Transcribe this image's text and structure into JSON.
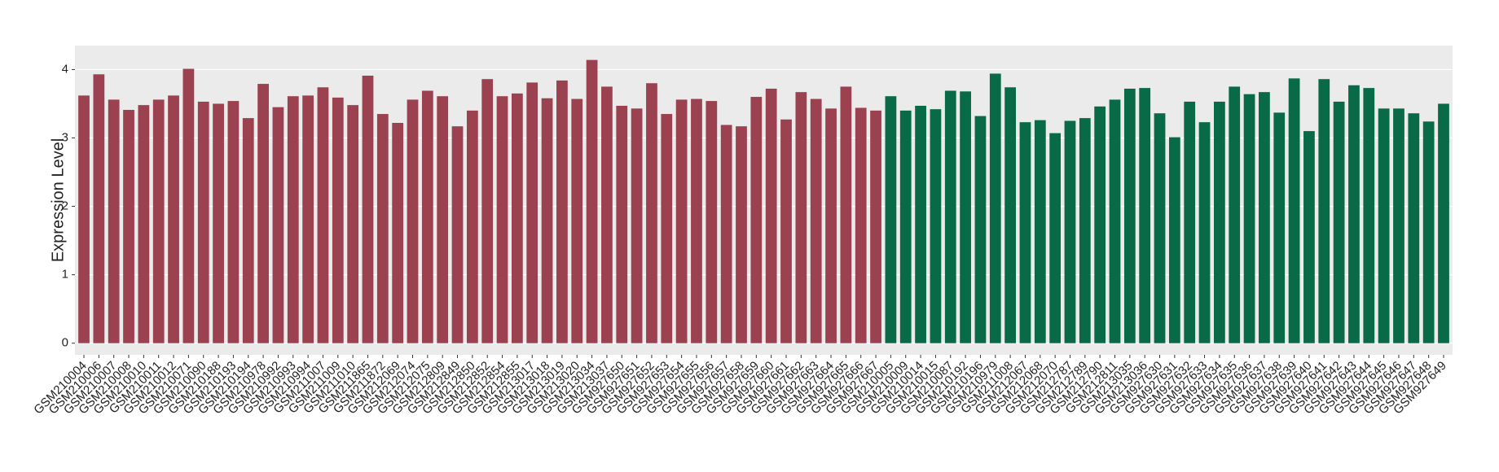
{
  "chart_data": {
    "type": "bar",
    "y_label": "Expression Level",
    "categories": [
      "GSM210004",
      "GSM210006",
      "GSM210007",
      "GSM210008",
      "GSM210010",
      "GSM210011",
      "GSM210012",
      "GSM210071",
      "GSM210090",
      "GSM210188",
      "GSM210193",
      "GSM210194",
      "GSM210978",
      "GSM210992",
      "GSM210993",
      "GSM210994",
      "GSM211007",
      "GSM211009",
      "GSM211010",
      "GSM211865",
      "GSM211872",
      "GSM212069",
      "GSM212074",
      "GSM212075",
      "GSM212809",
      "GSM212849",
      "GSM212850",
      "GSM212852",
      "GSM212854",
      "GSM212855",
      "GSM213017",
      "GSM213018",
      "GSM213019",
      "GSM213020",
      "GSM213034",
      "GSM213037",
      "GSM927650",
      "GSM927651",
      "GSM927652",
      "GSM927653",
      "GSM927654",
      "GSM927655",
      "GSM927656",
      "GSM927657",
      "GSM927658",
      "GSM927659",
      "GSM927660",
      "GSM927661",
      "GSM927662",
      "GSM927663",
      "GSM927664",
      "GSM927665",
      "GSM927666",
      "GSM927667",
      "GSM210005",
      "GSM210009",
      "GSM210014",
      "GSM210015",
      "GSM210087",
      "GSM210192",
      "GSM210196",
      "GSM210979",
      "GSM211008",
      "GSM212067",
      "GSM212068",
      "GSM212070",
      "GSM212787",
      "GSM212789",
      "GSM212790",
      "GSM212811",
      "GSM213035",
      "GSM213036",
      "GSM927630",
      "GSM927631",
      "GSM927632",
      "GSM927633",
      "GSM927634",
      "GSM927635",
      "GSM927636",
      "GSM927637",
      "GSM927638",
      "GSM927639",
      "GSM927640",
      "GSM927641",
      "GSM927642",
      "GSM927643",
      "GSM927644",
      "GSM927645",
      "GSM927646",
      "GSM927647",
      "GSM927648",
      "GSM927649"
    ],
    "values": [
      3.62,
      3.93,
      3.56,
      3.41,
      3.48,
      3.56,
      3.62,
      4.01,
      3.53,
      3.5,
      3.54,
      3.29,
      3.79,
      3.45,
      3.61,
      3.62,
      3.74,
      3.59,
      3.48,
      3.91,
      3.35,
      3.22,
      3.56,
      3.69,
      3.61,
      3.17,
      3.4,
      3.86,
      3.61,
      3.65,
      3.81,
      3.58,
      3.84,
      3.57,
      4.14,
      3.75,
      3.47,
      3.43,
      3.8,
      3.35,
      3.56,
      3.57,
      3.54,
      3.19,
      3.17,
      3.6,
      3.72,
      3.27,
      3.67,
      3.57,
      3.43,
      3.75,
      3.44,
      3.4,
      3.61,
      3.4,
      3.47,
      3.42,
      3.69,
      3.68,
      3.32,
      3.94,
      3.74,
      3.23,
      3.26,
      3.07,
      3.25,
      3.29,
      3.46,
      3.56,
      3.72,
      3.73,
      3.36,
      3.01,
      3.53,
      3.23,
      3.53,
      3.75,
      3.64,
      3.67,
      3.37,
      3.87,
      3.1,
      3.86,
      3.53,
      3.77,
      3.73,
      3.43,
      3.43,
      3.36,
      3.24,
      3.5
    ],
    "colors": [
      "#9b4150",
      "#9b4150",
      "#9b4150",
      "#9b4150",
      "#9b4150",
      "#9b4150",
      "#9b4150",
      "#9b4150",
      "#9b4150",
      "#9b4150",
      "#9b4150",
      "#9b4150",
      "#9b4150",
      "#9b4150",
      "#9b4150",
      "#9b4150",
      "#9b4150",
      "#9b4150",
      "#9b4150",
      "#9b4150",
      "#9b4150",
      "#9b4150",
      "#9b4150",
      "#9b4150",
      "#9b4150",
      "#9b4150",
      "#9b4150",
      "#9b4150",
      "#9b4150",
      "#9b4150",
      "#9b4150",
      "#9b4150",
      "#9b4150",
      "#9b4150",
      "#9b4150",
      "#9b4150",
      "#9b4150",
      "#9b4150",
      "#9b4150",
      "#9b4150",
      "#9b4150",
      "#9b4150",
      "#9b4150",
      "#9b4150",
      "#9b4150",
      "#9b4150",
      "#9b4150",
      "#9b4150",
      "#9b4150",
      "#9b4150",
      "#9b4150",
      "#9b4150",
      "#9b4150",
      "#9b4150",
      "#086a46",
      "#086a46",
      "#086a46",
      "#086a46",
      "#086a46",
      "#086a46",
      "#086a46",
      "#086a46",
      "#086a46",
      "#086a46",
      "#086a46",
      "#086a46",
      "#086a46",
      "#086a46",
      "#086a46",
      "#086a46",
      "#086a46",
      "#086a46",
      "#086a46",
      "#086a46",
      "#086a46",
      "#086a46",
      "#086a46",
      "#086a46",
      "#086a46",
      "#086a46",
      "#086a46",
      "#086a46",
      "#086a46",
      "#086a46",
      "#086a46",
      "#086a46",
      "#086a46",
      "#086a46",
      "#086a46",
      "#086a46",
      "#086a46",
      "#086a46"
    ],
    "ylim": [
      -0.17,
      4.35
    ],
    "yticks": [
      0,
      1,
      2,
      3,
      4
    ],
    "grid": true
  }
}
